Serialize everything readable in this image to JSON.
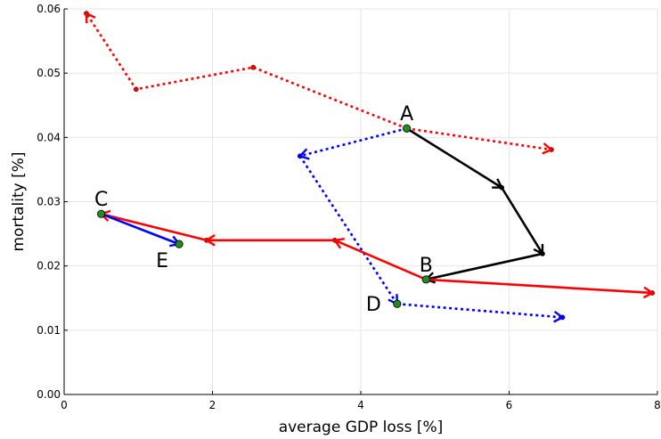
{
  "chart_data": {
    "type": "line",
    "title": "",
    "xlabel": "average GDP loss [%]",
    "ylabel": "mortality [%]",
    "xlim": [
      0,
      8
    ],
    "ylim": [
      0,
      0.06
    ],
    "x_ticks": [
      0,
      2,
      4,
      6,
      8
    ],
    "x_tick_labels": [
      "0",
      "2",
      "4",
      "6",
      "8"
    ],
    "y_ticks": [
      0,
      0.01,
      0.02,
      0.03,
      0.04,
      0.05,
      0.06
    ],
    "y_tick_labels": [
      "0.00",
      "0.01",
      "0.02",
      "0.03",
      "0.04",
      "0.05",
      "0.06"
    ],
    "grid": true,
    "legend": "none",
    "series": [
      {
        "color": "#ff0000",
        "style": "dotted",
        "points": [
          [
            4.62,
            0.0414
          ],
          [
            6.57,
            0.0381
          ]
        ],
        "arrow_at_end": true
      },
      {
        "color": "#ff0000",
        "style": "dotted",
        "points": [
          [
            4.62,
            0.0414
          ],
          [
            2.55,
            0.0509
          ],
          [
            0.97,
            0.0475
          ],
          [
            0.3,
            0.0593
          ]
        ],
        "arrow_at_end": true
      },
      {
        "color": "#0000ff",
        "style": "dotted",
        "points": [
          [
            4.62,
            0.0414
          ],
          [
            3.18,
            0.0371
          ]
        ],
        "arrow_at_end": true
      },
      {
        "color": "#0000ff",
        "style": "dotted",
        "points": [
          [
            3.18,
            0.0371
          ],
          [
            4.49,
            0.0141
          ]
        ],
        "arrow_at_end": true
      },
      {
        "color": "#0000ff",
        "style": "dotted",
        "points": [
          [
            4.49,
            0.0141
          ],
          [
            6.72,
            0.012
          ]
        ],
        "arrow_at_end": true
      },
      {
        "color": "#000000",
        "style": "solid",
        "points": [
          [
            4.62,
            0.0414
          ],
          [
            5.9,
            0.0322
          ]
        ],
        "arrow_at_end": true
      },
      {
        "color": "#000000",
        "style": "solid",
        "points": [
          [
            5.9,
            0.0322
          ],
          [
            6.45,
            0.0219
          ]
        ],
        "arrow_at_end": true
      },
      {
        "color": "#000000",
        "style": "solid",
        "points": [
          [
            6.45,
            0.0219
          ],
          [
            4.88,
            0.0179
          ]
        ],
        "arrow_at_end": true
      },
      {
        "color": "#ff0000",
        "style": "solid",
        "points": [
          [
            4.88,
            0.0179
          ],
          [
            7.93,
            0.0158
          ]
        ],
        "arrow_at_end": true
      },
      {
        "color": "#ff0000",
        "style": "solid",
        "points": [
          [
            4.88,
            0.0179
          ],
          [
            3.65,
            0.024
          ]
        ],
        "arrow_at_end": true
      },
      {
        "color": "#ff0000",
        "style": "solid",
        "points": [
          [
            3.65,
            0.024
          ],
          [
            1.92,
            0.024
          ]
        ],
        "arrow_at_end": true
      },
      {
        "color": "#ff0000",
        "style": "solid",
        "points": [
          [
            1.92,
            0.024
          ],
          [
            0.5,
            0.0281
          ]
        ],
        "arrow_at_end": true
      },
      {
        "color": "#0000ff",
        "style": "solid",
        "points": [
          [
            0.5,
            0.0281
          ],
          [
            1.55,
            0.0234
          ]
        ],
        "arrow_at_end": true
      }
    ],
    "key_points": [
      {
        "label": "A",
        "x": 4.62,
        "y": 0.0414,
        "label_pos": "above"
      },
      {
        "label": "B",
        "x": 4.88,
        "y": 0.0179,
        "label_pos": "above"
      },
      {
        "label": "C",
        "x": 0.5,
        "y": 0.0281,
        "label_pos": "above"
      },
      {
        "label": "D",
        "x": 4.49,
        "y": 0.0141,
        "label_pos": "left"
      },
      {
        "label": "E",
        "x": 1.55,
        "y": 0.0234,
        "label_pos": "below-left"
      }
    ],
    "colors": {
      "point_fill": "#228b22",
      "grid": "#e6e6e6",
      "axis": "#000000"
    }
  }
}
